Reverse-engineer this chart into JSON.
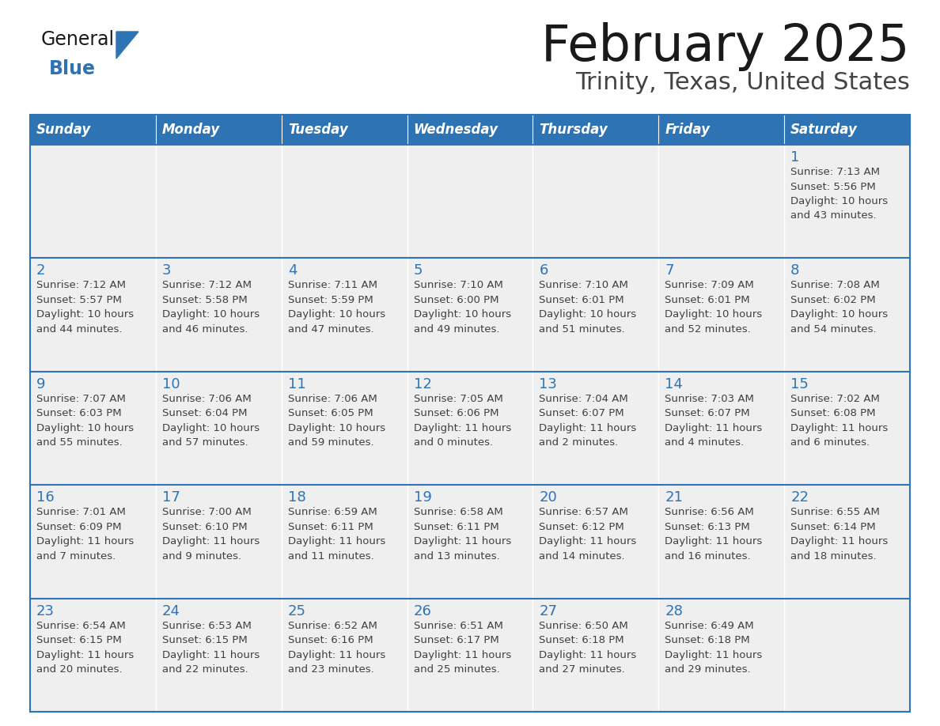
{
  "title": "February 2025",
  "subtitle": "Trinity, Texas, United States",
  "header_bg": "#2E74B5",
  "header_text_color": "#FFFFFF",
  "cell_bg": "#EFEFEF",
  "day_number_color": "#2E74B5",
  "text_color": "#404040",
  "border_color": "#2E74B5",
  "cell_divider_color": "#CCCCCC",
  "days_of_week": [
    "Sunday",
    "Monday",
    "Tuesday",
    "Wednesday",
    "Thursday",
    "Friday",
    "Saturday"
  ],
  "calendar": [
    [
      {
        "day": 0,
        "info": ""
      },
      {
        "day": 0,
        "info": ""
      },
      {
        "day": 0,
        "info": ""
      },
      {
        "day": 0,
        "info": ""
      },
      {
        "day": 0,
        "info": ""
      },
      {
        "day": 0,
        "info": ""
      },
      {
        "day": 1,
        "info": "Sunrise: 7:13 AM\nSunset: 5:56 PM\nDaylight: 10 hours\nand 43 minutes."
      }
    ],
    [
      {
        "day": 2,
        "info": "Sunrise: 7:12 AM\nSunset: 5:57 PM\nDaylight: 10 hours\nand 44 minutes."
      },
      {
        "day": 3,
        "info": "Sunrise: 7:12 AM\nSunset: 5:58 PM\nDaylight: 10 hours\nand 46 minutes."
      },
      {
        "day": 4,
        "info": "Sunrise: 7:11 AM\nSunset: 5:59 PM\nDaylight: 10 hours\nand 47 minutes."
      },
      {
        "day": 5,
        "info": "Sunrise: 7:10 AM\nSunset: 6:00 PM\nDaylight: 10 hours\nand 49 minutes."
      },
      {
        "day": 6,
        "info": "Sunrise: 7:10 AM\nSunset: 6:01 PM\nDaylight: 10 hours\nand 51 minutes."
      },
      {
        "day": 7,
        "info": "Sunrise: 7:09 AM\nSunset: 6:01 PM\nDaylight: 10 hours\nand 52 minutes."
      },
      {
        "day": 8,
        "info": "Sunrise: 7:08 AM\nSunset: 6:02 PM\nDaylight: 10 hours\nand 54 minutes."
      }
    ],
    [
      {
        "day": 9,
        "info": "Sunrise: 7:07 AM\nSunset: 6:03 PM\nDaylight: 10 hours\nand 55 minutes."
      },
      {
        "day": 10,
        "info": "Sunrise: 7:06 AM\nSunset: 6:04 PM\nDaylight: 10 hours\nand 57 minutes."
      },
      {
        "day": 11,
        "info": "Sunrise: 7:06 AM\nSunset: 6:05 PM\nDaylight: 10 hours\nand 59 minutes."
      },
      {
        "day": 12,
        "info": "Sunrise: 7:05 AM\nSunset: 6:06 PM\nDaylight: 11 hours\nand 0 minutes."
      },
      {
        "day": 13,
        "info": "Sunrise: 7:04 AM\nSunset: 6:07 PM\nDaylight: 11 hours\nand 2 minutes."
      },
      {
        "day": 14,
        "info": "Sunrise: 7:03 AM\nSunset: 6:07 PM\nDaylight: 11 hours\nand 4 minutes."
      },
      {
        "day": 15,
        "info": "Sunrise: 7:02 AM\nSunset: 6:08 PM\nDaylight: 11 hours\nand 6 minutes."
      }
    ],
    [
      {
        "day": 16,
        "info": "Sunrise: 7:01 AM\nSunset: 6:09 PM\nDaylight: 11 hours\nand 7 minutes."
      },
      {
        "day": 17,
        "info": "Sunrise: 7:00 AM\nSunset: 6:10 PM\nDaylight: 11 hours\nand 9 minutes."
      },
      {
        "day": 18,
        "info": "Sunrise: 6:59 AM\nSunset: 6:11 PM\nDaylight: 11 hours\nand 11 minutes."
      },
      {
        "day": 19,
        "info": "Sunrise: 6:58 AM\nSunset: 6:11 PM\nDaylight: 11 hours\nand 13 minutes."
      },
      {
        "day": 20,
        "info": "Sunrise: 6:57 AM\nSunset: 6:12 PM\nDaylight: 11 hours\nand 14 minutes."
      },
      {
        "day": 21,
        "info": "Sunrise: 6:56 AM\nSunset: 6:13 PM\nDaylight: 11 hours\nand 16 minutes."
      },
      {
        "day": 22,
        "info": "Sunrise: 6:55 AM\nSunset: 6:14 PM\nDaylight: 11 hours\nand 18 minutes."
      }
    ],
    [
      {
        "day": 23,
        "info": "Sunrise: 6:54 AM\nSunset: 6:15 PM\nDaylight: 11 hours\nand 20 minutes."
      },
      {
        "day": 24,
        "info": "Sunrise: 6:53 AM\nSunset: 6:15 PM\nDaylight: 11 hours\nand 22 minutes."
      },
      {
        "day": 25,
        "info": "Sunrise: 6:52 AM\nSunset: 6:16 PM\nDaylight: 11 hours\nand 23 minutes."
      },
      {
        "day": 26,
        "info": "Sunrise: 6:51 AM\nSunset: 6:17 PM\nDaylight: 11 hours\nand 25 minutes."
      },
      {
        "day": 27,
        "info": "Sunrise: 6:50 AM\nSunset: 6:18 PM\nDaylight: 11 hours\nand 27 minutes."
      },
      {
        "day": 28,
        "info": "Sunrise: 6:49 AM\nSunset: 6:18 PM\nDaylight: 11 hours\nand 29 minutes."
      },
      {
        "day": 0,
        "info": ""
      }
    ]
  ],
  "logo_general_color": "#1a1a1a",
  "logo_blue_color": "#2E74B5",
  "logo_triangle_color": "#2E74B5"
}
